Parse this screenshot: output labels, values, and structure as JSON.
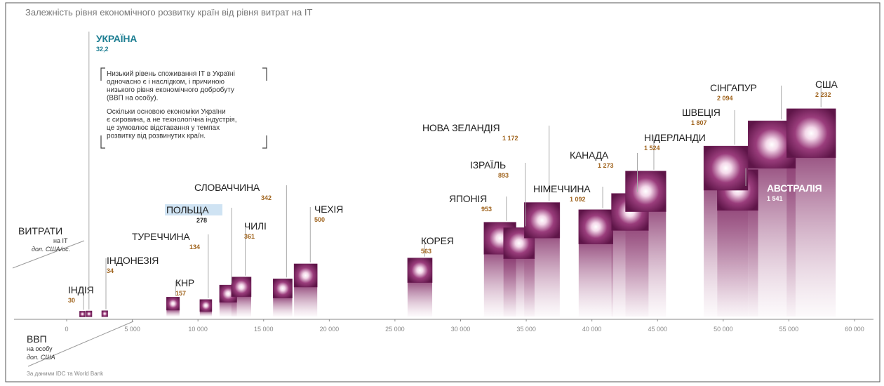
{
  "chart_data": {
    "type": "scatter",
    "title": "Залежність рівня економічного розвитку країн від рівня витрат на ІТ",
    "y_axis_label": [
      "ВИТРАТИ",
      "на ІТ",
      "дол. США/ос."
    ],
    "x_axis_label": [
      "ВВП",
      "на особу",
      "дол. США"
    ],
    "source": "За даними IDC та World Bank",
    "annotation": [
      "Низький рівень споживання ІТ в Україні",
      "одночасно є і наслідком, і причиною",
      "низького рівня економічного добробуту",
      "(ВВП на особу).",
      "Оскільки основою економіки України",
      "є сировина, а не технологічна індустрія,",
      "це зумовлює відставання у темпах",
      "розвитку від розвинутих країн."
    ],
    "categories": [
      "ІНДІЯ",
      "УКРАЇНА",
      "ІНДОНЕЗІЯ",
      "КНР",
      "ТУРЕЧЧИНА",
      "ПОЛЬЩА",
      "СЛОВАЧЧИНА",
      "ЧИЛІ",
      "ЧЕХІЯ",
      "КОРЕЯ",
      "ЯПОНІЯ",
      "ІЗРАЇЛЬ",
      "НОВА ЗЕЛАНДІЯ",
      "НІМЕЧЧИНА",
      "КАНАДА",
      "НІДЕРЛАНДИ",
      "АВСТРАЛІЯ",
      "ШВЕЦІЯ",
      "СІНГАПУР",
      "США"
    ],
    "x": [
      1200,
      1700,
      2900,
      8100,
      10600,
      12300,
      16450,
      13300,
      18200,
      26900,
      33000,
      34450,
      36200,
      40300,
      42900,
      44100,
      51100,
      50200,
      53700,
      56700
    ],
    "values": [
      30,
      32.2,
      34,
      157,
      134,
      278,
      342,
      361,
      500,
      563,
      953,
      893,
      1172,
      1092,
      1273,
      1524,
      1541,
      1807,
      2094,
      2232
    ],
    "value_labels": [
      "30",
      "32,2",
      "34",
      "157",
      "134",
      "278",
      "342",
      "361",
      "500",
      "563",
      "953",
      "893",
      "1 172",
      "1 092",
      "1 273",
      "1 524",
      "1 541",
      "1 807",
      "2 094",
      "2 232"
    ],
    "color": "#6e1d56",
    "highlight_color": "#1f7f93",
    "xlim": [
      0,
      60000
    ],
    "xticks": [
      0,
      {
        "value": 5000,
        "label": "5 000"
      },
      {
        "value": 10000,
        "label": "10 000"
      },
      {
        "value": 15000,
        "label": "15 000"
      },
      {
        "value": 20000,
        "label": "20 000"
      },
      {
        "value": 25000,
        "label": "25 000"
      },
      {
        "value": 30000,
        "label": "30 000"
      },
      {
        "value": 35000,
        "label": "35 000"
      },
      {
        "value": 40000,
        "label": "40 000"
      },
      {
        "value": 45000,
        "label": "45 000"
      },
      {
        "value": 50000,
        "label": "50 000"
      },
      {
        "value": 55000,
        "label": "55 000"
      },
      {
        "value": 60000,
        "label": "60 000"
      }
    ]
  }
}
